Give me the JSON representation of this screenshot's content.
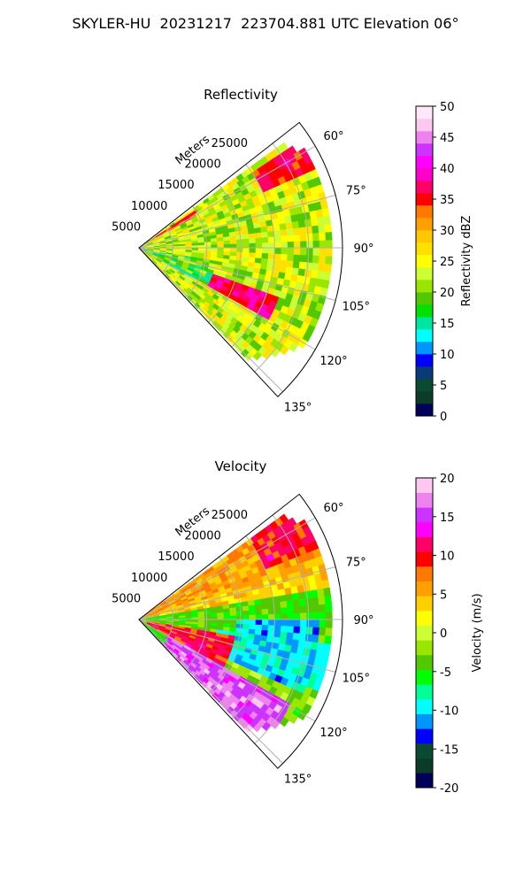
{
  "figure_title": "SKYLER-HU  20231217  223704.881 UTC Elevation 06°",
  "colors": {
    "grid": "#b0b0b0",
    "reflectivity_scale": [
      "#00005a",
      "#0a3c28",
      "#0a4a32",
      "#0a3a78",
      "#0000ff",
      "#0096ff",
      "#00ffff",
      "#00e6a0",
      "#00e100",
      "#52c800",
      "#9be600",
      "#ccff33",
      "#ffff00",
      "#ffe100",
      "#ffc800",
      "#ffa000",
      "#ff7800",
      "#ff0000",
      "#ff0064",
      "#ff00cc",
      "#ff00ff",
      "#cc33ff",
      "#ee82ee",
      "#ffc8f0",
      "#ffe8fa"
    ],
    "velocity_scale": [
      "#00005a",
      "#0a3c28",
      "#0a4a32",
      "#0000ff",
      "#0096ff",
      "#00ffff",
      "#00ff96",
      "#00ff00",
      "#52c800",
      "#9be600",
      "#ccff33",
      "#ffff00",
      "#ffd000",
      "#ffa000",
      "#ff7800",
      "#ff0000",
      "#ff0064",
      "#ff00ff",
      "#cc33ff",
      "#ee82ee",
      "#ffc8f0"
    ]
  },
  "chart_data": [
    {
      "type": "heatmap",
      "subtype": "ppi-sector",
      "title": "Reflectivity",
      "range_axis_label": "Meters",
      "range_ticks": [
        5000,
        10000,
        15000,
        20000,
        25000
      ],
      "range_tick_labels": [
        "5000",
        "10000",
        "15000",
        "20000",
        "25000"
      ],
      "max_range": 30000,
      "azimuth_span_deg": [
        52,
        137
      ],
      "azimuth_ticks": [
        "60°",
        "75°",
        "90°",
        "105°",
        "120°",
        "135°"
      ],
      "colorbar": {
        "label": "Reflectivity dBZ",
        "range": [
          0,
          50
        ],
        "ticks": [
          "0",
          "5",
          "10",
          "15",
          "20",
          "25",
          "30",
          "35",
          "40",
          "45",
          "50"
        ]
      },
      "features": [
        {
          "azimuth_deg": [
            56,
            66
          ],
          "range_m": [
            20000,
            29000
          ],
          "value": 36
        },
        {
          "azimuth_deg": [
            110,
            120
          ],
          "range_m": [
            12000,
            22000
          ],
          "value": 37
        },
        {
          "azimuth_deg": [
            56,
            62
          ],
          "range_m": [
            1000,
            10000
          ],
          "value": 34
        }
      ],
      "grid": true
    },
    {
      "type": "heatmap",
      "subtype": "ppi-sector",
      "title": "Velocity",
      "range_axis_label": "Meters",
      "range_ticks": [
        5000,
        10000,
        15000,
        20000,
        25000
      ],
      "range_tick_labels": [
        "5000",
        "10000",
        "15000",
        "20000",
        "25000"
      ],
      "max_range": 30000,
      "azimuth_span_deg": [
        52,
        137
      ],
      "azimuth_ticks": [
        "60°",
        "75°",
        "90°",
        "105°",
        "120°",
        "135°"
      ],
      "colorbar": {
        "label": "Velocity (m/s)",
        "range": [
          -20,
          20
        ],
        "ticks": [
          "-20",
          "-15",
          "-10",
          "-5",
          "0",
          "5",
          "10",
          "15",
          "20"
        ]
      },
      "features": [
        {
          "azimuth_deg": [
            55,
            68
          ],
          "range_m": [
            20000,
            29000
          ],
          "value": 10
        },
        {
          "azimuth_deg": [
            100,
            122
          ],
          "range_m": [
            1000,
            14000
          ],
          "value": 10
        },
        {
          "azimuth_deg": [
            118,
            136
          ],
          "range_m": [
            5000,
            26000
          ],
          "value": 16
        },
        {
          "azimuth_deg": [
            90,
            115
          ],
          "range_m": [
            14000,
            27000
          ],
          "value": -10
        }
      ],
      "grid": true
    }
  ]
}
